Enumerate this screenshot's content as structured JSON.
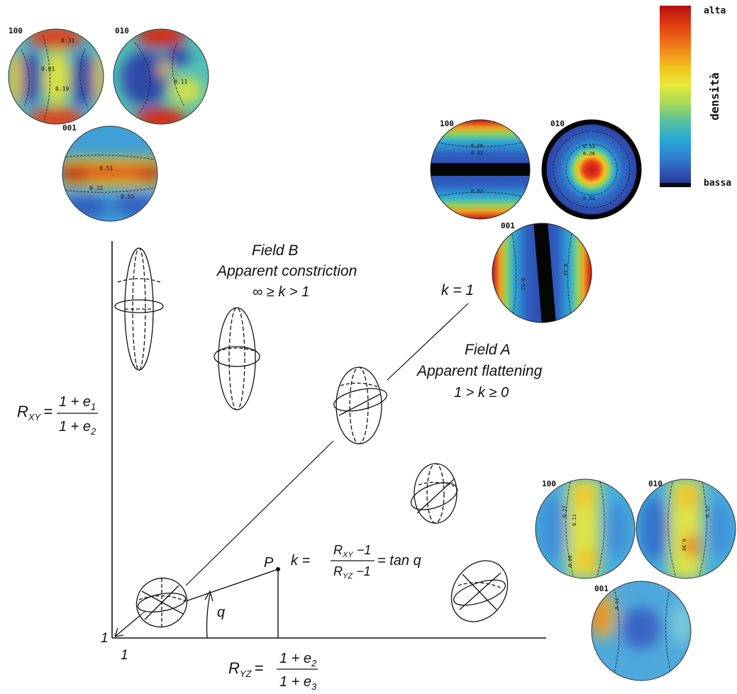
{
  "colorbar": {
    "high_label": "alta",
    "low_label": "bassa",
    "title": "densità",
    "colors": [
      "#b01010",
      "#e03a12",
      "#f07a18",
      "#f2c21e",
      "#e6e93a",
      "#a6d957",
      "#53c0a0",
      "#2aa7d8",
      "#2f7fd0",
      "#2f4eb0",
      "#25308a"
    ]
  },
  "pole_groups": [
    {
      "id": "top-left",
      "labels": [
        "100",
        "010",
        "001"
      ],
      "contours": [
        "0.01",
        "0.31",
        "0.51",
        "0.19",
        "0.11",
        "0.32",
        "0.52"
      ]
    },
    {
      "id": "top-right",
      "labels": [
        "100",
        "010",
        "001"
      ],
      "contours": [
        "0.28",
        "0.52",
        "0.32",
        "0.53",
        "0.28",
        "0.52",
        "0.52",
        "0.32"
      ]
    },
    {
      "id": "bottom-right",
      "labels": [
        "100",
        "010",
        "001"
      ],
      "contours": [
        "0.17",
        "0.11",
        "0.20",
        "0.39",
        "0.17",
        "0.11"
      ]
    }
  ],
  "diagram": {
    "field_b": {
      "title": "Field B",
      "subtitle": "Apparent constriction",
      "range": "∞ ≥ k > 1"
    },
    "field_a": {
      "title": "Field A",
      "subtitle": "Apparent flattening",
      "range": "1 > k ≥ 0"
    },
    "k_line_label": "k = 1",
    "y_axis": {
      "lhs": "R",
      "sub": "XY",
      "eq": "=",
      "num": "1 + e",
      "num_sub": "1",
      "den": "1 + e",
      "den_sub": "2"
    },
    "x_axis": {
      "lhs": "R",
      "sub": "YZ",
      "eq": "=",
      "num": "1 + e",
      "num_sub": "2",
      "den": "1 + e",
      "den_sub": "3"
    },
    "k_formula": {
      "lhs": "k =",
      "num": "R",
      "num_sub": "XY",
      "num_tail": " −1",
      "den": "R",
      "den_sub": "YZ",
      "den_tail": " −1",
      "rhs": "= tan q"
    },
    "point_label": "P",
    "angle_label": "q",
    "origin_x": "1",
    "origin_y": "1"
  }
}
